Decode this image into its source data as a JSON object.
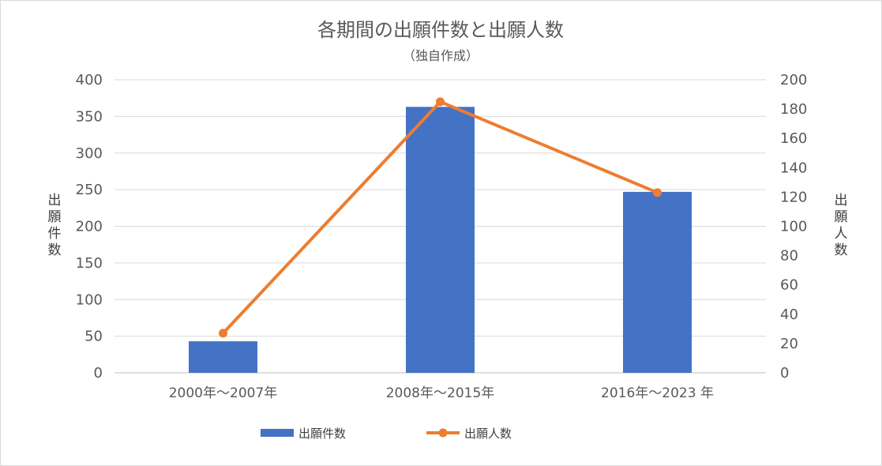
{
  "chart_data": {
    "type": "bar",
    "title": "各期間の出願件数と出願人数",
    "subtitle": "（独自作成）",
    "categories": [
      "2000年～2007年",
      "2008年～2015年",
      "2016年～2023 年"
    ],
    "series": [
      {
        "name": "出願件数",
        "type": "bar",
        "axis": "left",
        "color": "#4472c4",
        "values": [
          43,
          363,
          247
        ]
      },
      {
        "name": "出願人数",
        "type": "line",
        "axis": "right",
        "color": "#ed7d31",
        "values": [
          27,
          185,
          123
        ]
      }
    ],
    "y_left": {
      "label": "出願件数",
      "min": 0,
      "max": 400,
      "ticks": [
        0,
        50,
        100,
        150,
        200,
        250,
        300,
        350,
        400
      ]
    },
    "y_right": {
      "label": "出願人数",
      "min": 0,
      "max": 200,
      "ticks": [
        0,
        20,
        40,
        60,
        80,
        100,
        120,
        140,
        160,
        180,
        200
      ]
    },
    "grid": true,
    "legend": "bottom"
  }
}
